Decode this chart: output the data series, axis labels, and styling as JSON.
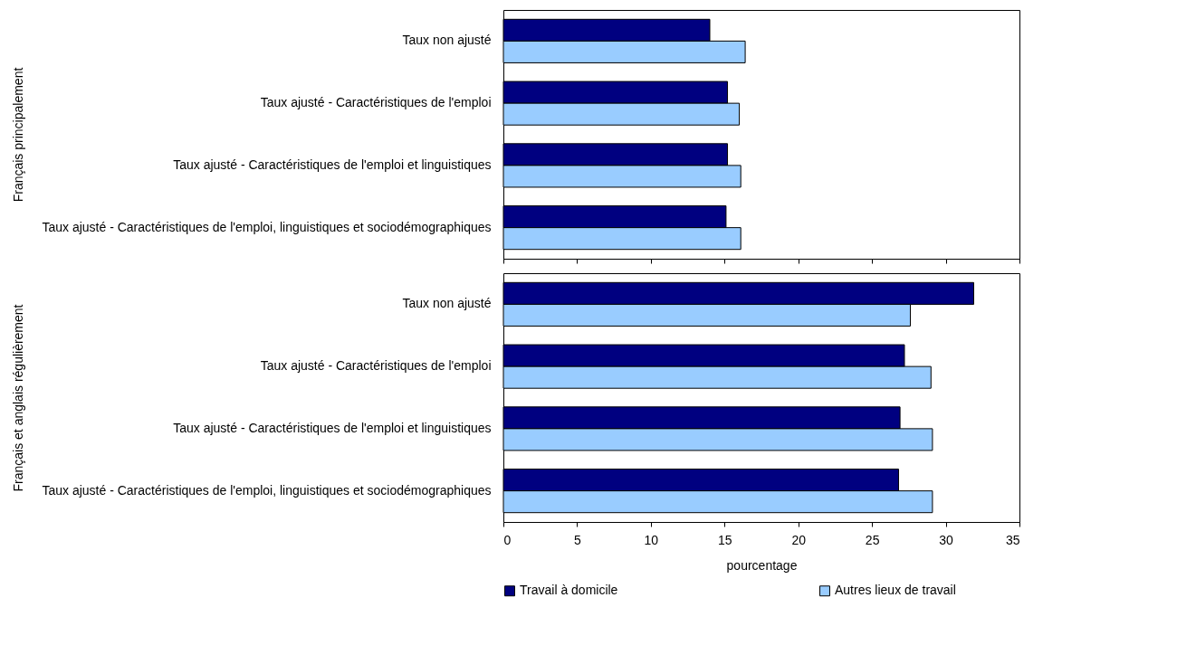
{
  "chart_data": [
    {
      "type": "bar",
      "orientation": "horizontal",
      "ylabel": "Français principalement",
      "categories": [
        "Taux non ajusté",
        "Taux ajusté - Caractéristiques de l'emploi",
        "Taux ajusté - Caractéristiques de l'emploi et linguistiques",
        "Taux ajusté - Caractéristiques de l'emploi, linguistiques et sociodémographiques"
      ],
      "series": [
        {
          "color": "#000080",
          "values": [
            14.0,
            15.2,
            15.2,
            15.1
          ]
        },
        {
          "color": "#99ccff",
          "values": [
            16.4,
            16.0,
            16.1,
            16.1
          ]
        }
      ],
      "xlim": [
        0,
        35
      ],
      "xticks": [
        0,
        5,
        10,
        15,
        20,
        25,
        30,
        35
      ],
      "tick_labels": "y",
      "grid": false,
      "legend": false
    },
    {
      "type": "bar",
      "orientation": "horizontal",
      "ylabel": "Français et anglais régulièrement",
      "xlabel": "pourcentage",
      "categories": [
        "Taux non ajusté",
        "Taux ajusté - Caractéristiques de l'emploi",
        "Taux ajusté - Caractéristiques de l'emploi et linguistiques",
        "Taux ajusté - Caractéristiques de l'emploi, linguistiques et sociodémographiques"
      ],
      "series": [
        {
          "name": "Travail à domicile",
          "color": "#000080",
          "values": [
            31.9,
            27.2,
            26.9,
            26.8
          ]
        },
        {
          "name": "Autres lieux de travail",
          "color": "#99ccff",
          "values": [
            27.6,
            29.0,
            29.1,
            29.1
          ]
        }
      ],
      "xlim": [
        0,
        35
      ],
      "xticks": [
        0,
        5,
        10,
        15,
        20,
        25,
        30,
        35
      ],
      "grid": false,
      "legend": "bottom"
    }
  ]
}
